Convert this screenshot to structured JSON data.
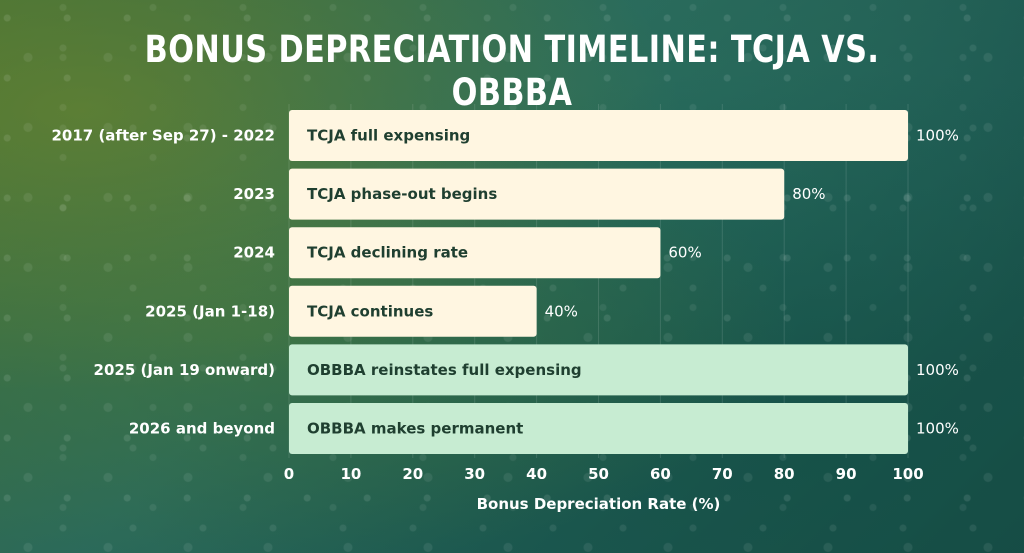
{
  "chart_data": {
    "type": "bar",
    "orientation": "horizontal",
    "title": "BONUS DEPRECIATION TIMELINE: TCJA VS. OBBBA",
    "xlabel": "Bonus Depreciation Rate (%)",
    "ylabel": "",
    "xlim": [
      0,
      100
    ],
    "xticks": [
      0,
      10,
      20,
      30,
      40,
      50,
      60,
      70,
      80,
      90,
      100
    ],
    "categories": [
      "2017 (after Sep 27) - 2022",
      "2023",
      "2024",
      "2025 (Jan 1-18)",
      "2025 (Jan 19 onward)",
      "2026 and beyond"
    ],
    "values": [
      100,
      80,
      60,
      40,
      100,
      100
    ],
    "value_labels": [
      "100%",
      "80%",
      "60%",
      "40%",
      "100%",
      "100%"
    ],
    "bar_labels": [
      "TCJA full expensing",
      "TCJA phase-out begins",
      "TCJA declining rate",
      "TCJA continues",
      "OBBBA reinstates full expensing",
      "OBBBA makes permanent"
    ],
    "bar_colors": [
      "#fff6e1",
      "#fff6e1",
      "#fff6e1",
      "#fff6e1",
      "#c7ecd2",
      "#c7ecd2"
    ],
    "grid": true
  }
}
